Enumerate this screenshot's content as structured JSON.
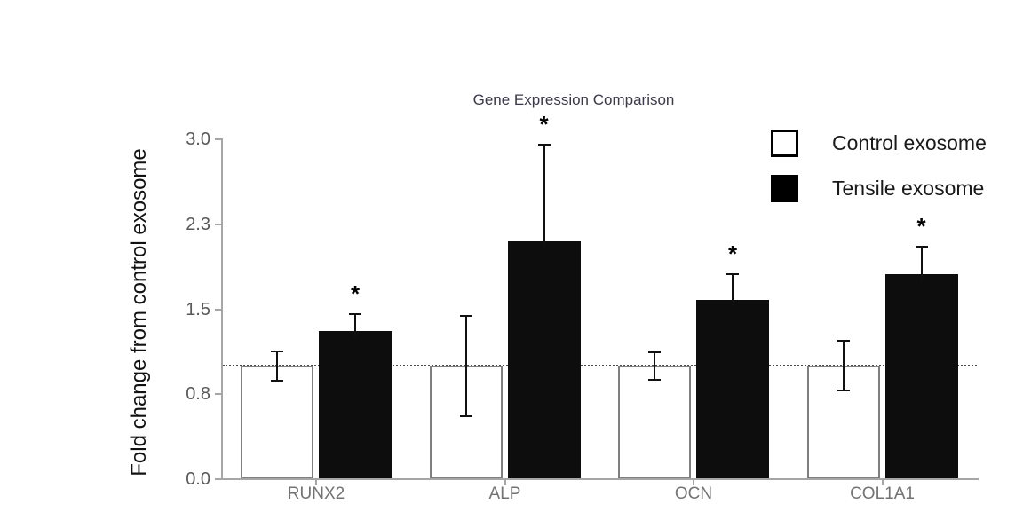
{
  "figure": {
    "title": "Gene Expression Comparison",
    "ylabel": "Fold change from control exosome"
  },
  "legend": {
    "items": [
      {
        "label": "Control exosome",
        "swatch_color": "#ffffff"
      },
      {
        "label": "Tensile exosome",
        "swatch_color": "#000000"
      }
    ]
  },
  "chart_data": {
    "type": "bar",
    "title": "Gene Expression Comparison",
    "xlabel": "",
    "ylabel": "Fold change from control exosome",
    "categories": [
      "RUNX2",
      "ALP",
      "OCN",
      "COL1A1"
    ],
    "series": [
      {
        "name": "Control exosome",
        "fill": "#ffffff",
        "border": "#7f7f7f",
        "values": [
          1.0,
          1.0,
          1.0,
          1.0
        ],
        "errors": [
          0.13,
          0.44,
          0.12,
          0.22
        ]
      },
      {
        "name": "Tensile exosome",
        "fill": "#0d0d0d",
        "values": [
          1.31,
          2.1,
          1.58,
          1.81
        ],
        "errors": [
          0.15,
          0.85,
          0.23,
          0.24
        ],
        "significance": [
          "*",
          "*",
          "*",
          "*"
        ]
      }
    ],
    "ylim": [
      0,
      3
    ],
    "yticks": [
      {
        "value": 0.0,
        "label": "0.0"
      },
      {
        "value": 0.75,
        "label": "0.8"
      },
      {
        "value": 1.5,
        "label": "1.5"
      },
      {
        "value": 2.25,
        "label": "2.3"
      },
      {
        "value": 3.0,
        "label": "3.0"
      }
    ],
    "baseline": {
      "value": 1.0,
      "style": "dotted"
    },
    "grid": false,
    "legend_position": "upper right"
  },
  "colors": {
    "axis": "#a6a6a6",
    "tick_label": "#595959",
    "category_label": "#737373",
    "title": "#3a3a4a",
    "error_bar": "#111111",
    "baseline": "#4a4a4a",
    "background": "#ffffff"
  }
}
